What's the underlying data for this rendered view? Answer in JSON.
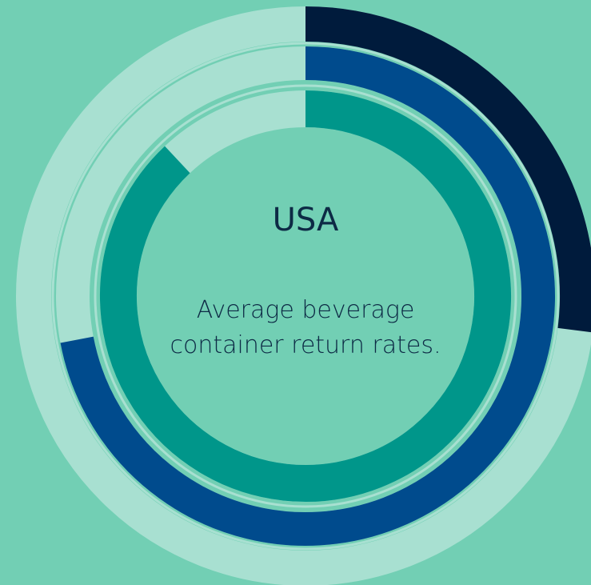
{
  "chart_data": {
    "type": "donut-rings",
    "title": "USA",
    "subtitle": "Average beverage container return rates.",
    "values": [
      27,
      72,
      88
    ],
    "colors": [
      "#001b3c",
      "#004b8d",
      "#00968a"
    ],
    "track_color": "#a8e0d1",
    "ylim": [
      0,
      100
    ],
    "background": "#72cfb4"
  }
}
